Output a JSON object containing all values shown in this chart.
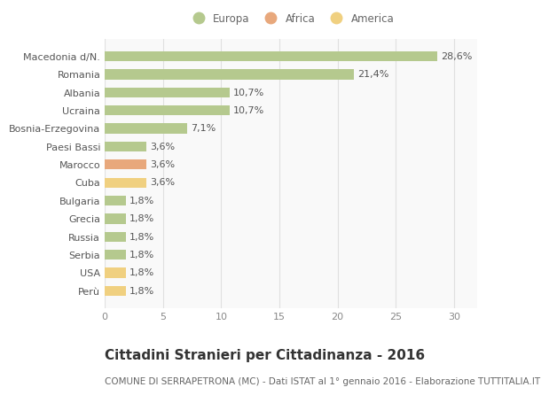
{
  "categories": [
    "Macedonia d/N.",
    "Romania",
    "Albania",
    "Ucraina",
    "Bosnia-Erzegovina",
    "Paesi Bassi",
    "Marocco",
    "Cuba",
    "Bulgaria",
    "Grecia",
    "Russia",
    "Serbia",
    "USA",
    "Perù"
  ],
  "values": [
    28.6,
    21.4,
    10.7,
    10.7,
    7.1,
    3.6,
    3.6,
    3.6,
    1.8,
    1.8,
    1.8,
    1.8,
    1.8,
    1.8
  ],
  "labels": [
    "28,6%",
    "21,4%",
    "10,7%",
    "10,7%",
    "7,1%",
    "3,6%",
    "3,6%",
    "3,6%",
    "1,8%",
    "1,8%",
    "1,8%",
    "1,8%",
    "1,8%",
    "1,8%"
  ],
  "continents": [
    "Europa",
    "Europa",
    "Europa",
    "Europa",
    "Europa",
    "Europa",
    "Africa",
    "America",
    "Europa",
    "Europa",
    "Europa",
    "Europa",
    "America",
    "America"
  ],
  "colors": {
    "Europa": "#b5c98e",
    "Africa": "#e8a87c",
    "America": "#f0d080"
  },
  "legend_order": [
    "Europa",
    "Africa",
    "America"
  ],
  "legend_colors": [
    "#b5c98e",
    "#e8a87c",
    "#f0d080"
  ],
  "xlim": [
    0,
    32
  ],
  "xticks": [
    0,
    5,
    10,
    15,
    20,
    25,
    30
  ],
  "title": "Cittadini Stranieri per Cittadinanza - 2016",
  "subtitle": "COMUNE DI SERRAPETRONA (MC) - Dati ISTAT al 1° gennaio 2016 - Elaborazione TUTTITALIA.IT",
  "background_color": "#ffffff",
  "plot_bg_color": "#f9f9f9",
  "grid_color": "#e0e0e0",
  "bar_height": 0.55,
  "label_fontsize": 8,
  "tick_fontsize": 8,
  "title_fontsize": 11,
  "subtitle_fontsize": 7.5
}
